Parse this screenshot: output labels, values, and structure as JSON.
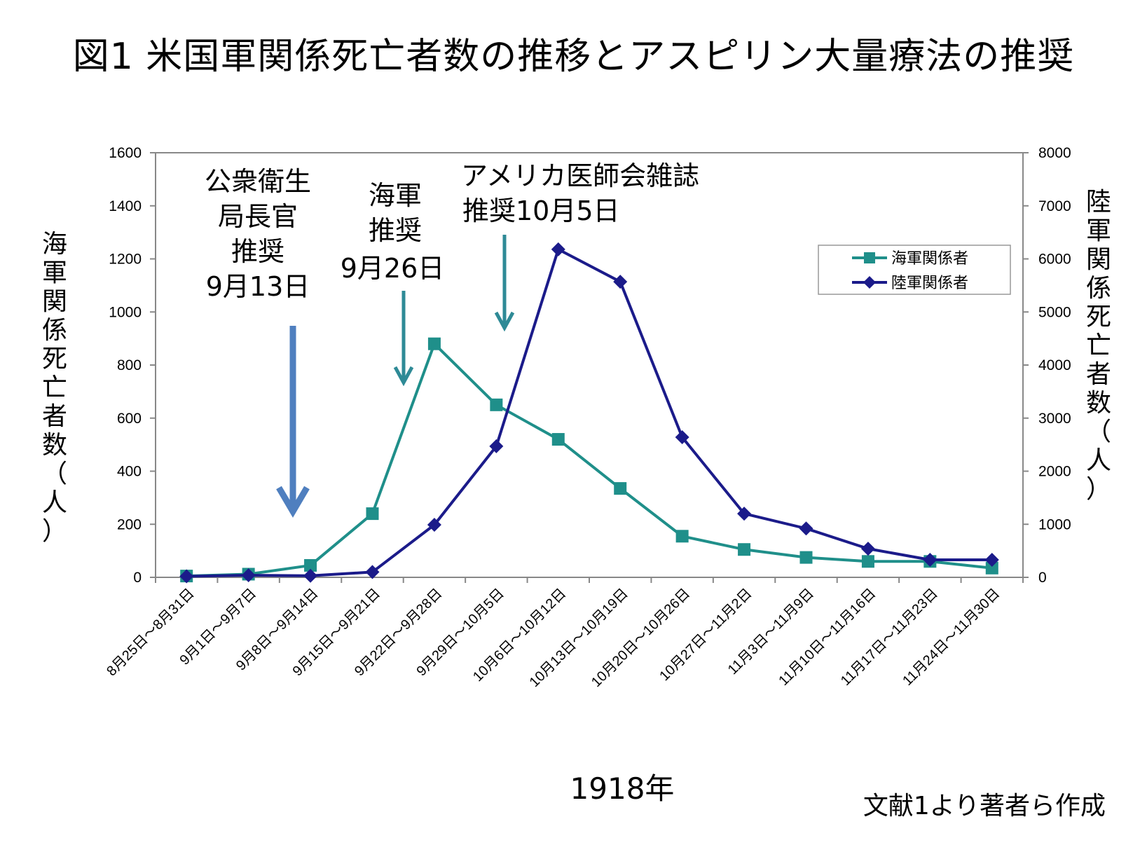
{
  "title": "図1 米国軍関係死亡者数の推移とアスピリン大量療法の推奨",
  "chart_data": {
    "type": "line",
    "categories": [
      "8月25日～8月31日",
      "9月1日～9月7日",
      "9月8日～9月14日",
      "9月15日～9月21日",
      "9月22日～9月28日",
      "9月29日～10月5日",
      "10月6日～10月12日",
      "10月13日～10月19日",
      "10月20日～10月26日",
      "10月27日～11月2日",
      "11月3日～11月9日",
      "11月10日～11月16日",
      "11月17日～11月23日",
      "11月24日～11月30日"
    ],
    "series": [
      {
        "name": "海軍関係者",
        "axis": "left",
        "color": "#1f8f8a",
        "marker": "square",
        "values": [
          5,
          12,
          45,
          240,
          880,
          650,
          520,
          335,
          155,
          105,
          75,
          60,
          60,
          35
        ]
      },
      {
        "name": "陸軍関係者",
        "axis": "right",
        "color": "#1b1b8a",
        "marker": "diamond",
        "values": [
          20,
          40,
          30,
          100,
          990,
          2470,
          6180,
          5570,
          2640,
          1200,
          920,
          540,
          330,
          330
        ]
      }
    ],
    "ylabel_left": [
      "海",
      "軍",
      "関",
      "係",
      "死",
      "亡",
      "者",
      "数",
      "（",
      "人",
      "）"
    ],
    "ylabel_right": [
      "陸",
      "軍",
      "関",
      "係",
      "死",
      "亡",
      "者",
      "数",
      "（",
      "人",
      "）"
    ],
    "ylim_left": [
      0,
      1600
    ],
    "ylim_right": [
      0,
      8000
    ],
    "yticks_left": [
      "0",
      "200",
      "400",
      "600",
      "800",
      "1000",
      "1200",
      "1400",
      "1600"
    ],
    "yticks_right": [
      "0",
      "1000",
      "2000",
      "3000",
      "4000",
      "5000",
      "6000",
      "7000",
      "8000"
    ],
    "xlabel": "1918年",
    "legend_position": "top-right",
    "grid": false,
    "annotations": [
      {
        "lines": [
          "公衆衛生",
          "局長官",
          "推奨",
          "9月13日"
        ],
        "color": "#4f7fbf"
      },
      {
        "lines": [
          "海軍",
          "推奨",
          "9月26日"
        ],
        "color": "#2e8a96"
      },
      {
        "lines": [
          "アメリカ医師会雑誌",
          "推奨10月5日"
        ],
        "color": "#2e8a96"
      }
    ]
  },
  "source_note": "文献1より著者ら作成"
}
